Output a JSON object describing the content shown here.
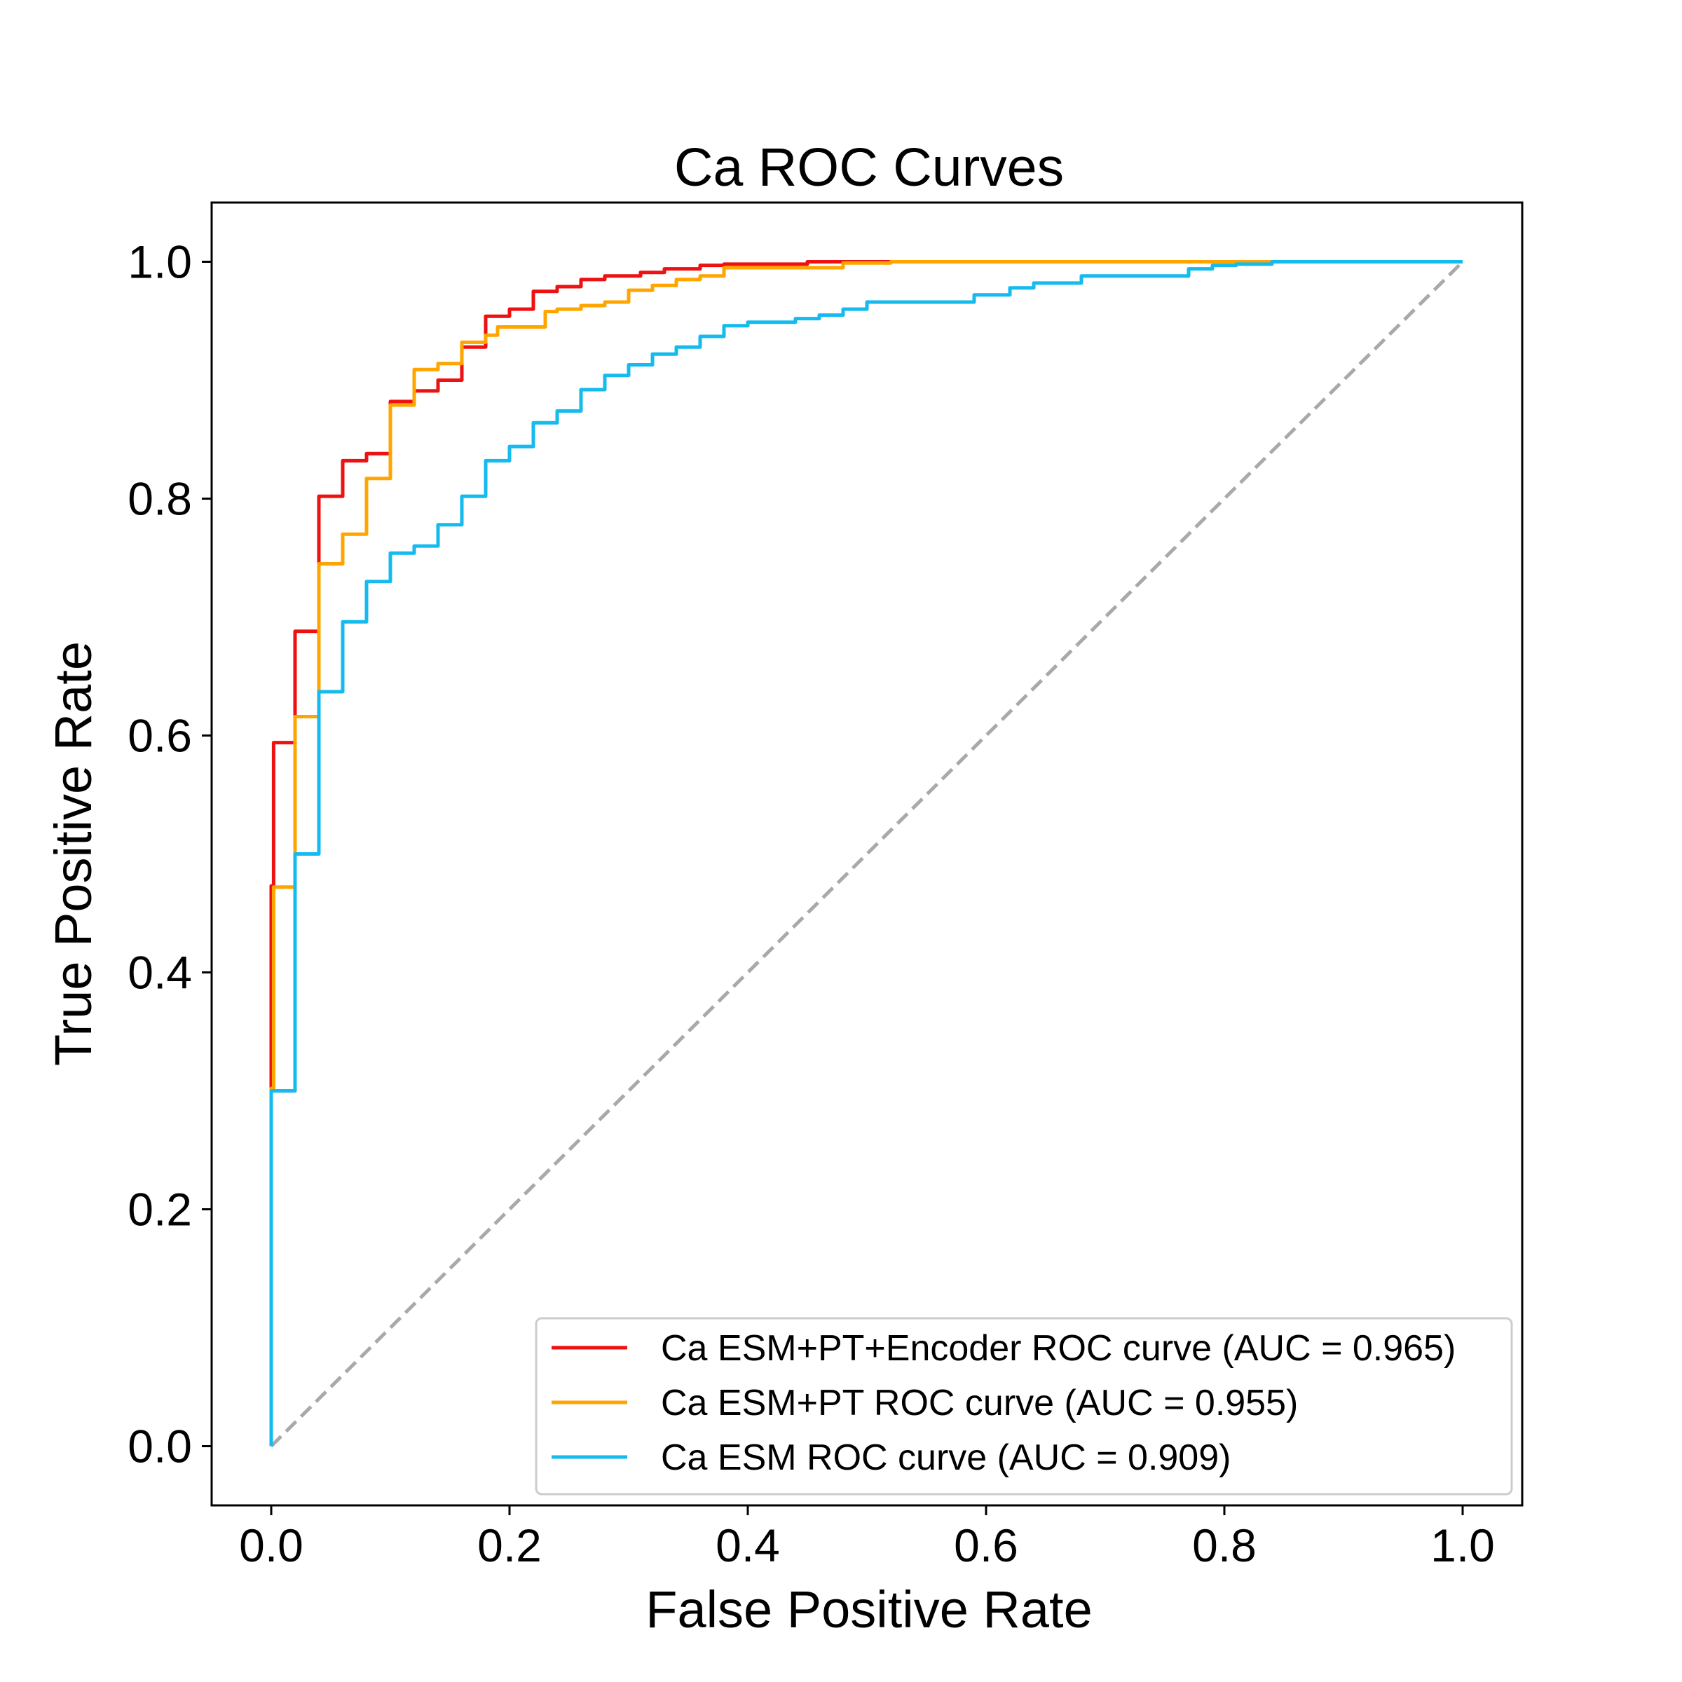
{
  "chart_data": {
    "type": "line",
    "title": "Ca ROC Curves",
    "xlabel": "False Positive Rate",
    "ylabel": "True Positive Rate",
    "xlim": [
      -0.05,
      1.05
    ],
    "ylim": [
      -0.05,
      1.05
    ],
    "xticks": [
      "0.0",
      "0.2",
      "0.4",
      "0.6",
      "0.8",
      "1.0"
    ],
    "yticks": [
      "0.0",
      "0.2",
      "0.4",
      "0.6",
      "0.8",
      "1.0"
    ],
    "grid": false,
    "legend_position": "lower-right",
    "diagonal": {
      "x": [
        0,
        1
      ],
      "y": [
        0,
        1
      ],
      "color": "#a9a9a9",
      "style": "dashed"
    },
    "series": [
      {
        "name": "Ca ESM+PT+Encoder ROC curve (AUC = 0.965)",
        "color": "#ee1111",
        "x": [
          0,
          0,
          0.002,
          0.002,
          0.011,
          0.011,
          0.02,
          0.02,
          0.03,
          0.03,
          0.04,
          0.04,
          0.05,
          0.05,
          0.06,
          0.06,
          0.07,
          0.07,
          0.08,
          0.08,
          0.09,
          0.09,
          0.1,
          0.1,
          0.11,
          0.11,
          0.12,
          0.12,
          0.13,
          0.13,
          0.14,
          0.14,
          0.15,
          0.15,
          0.16,
          0.16,
          0.17,
          0.17,
          0.18,
          0.18,
          0.19,
          0.19,
          0.2,
          0.2,
          0.21,
          0.21,
          0.22,
          0.22,
          0.23,
          0.23,
          0.24,
          0.24,
          0.26,
          0.26,
          0.28,
          0.28,
          0.31,
          0.31,
          0.33,
          0.33,
          0.36,
          0.36,
          0.38,
          0.38,
          0.45,
          0.45,
          0.53,
          0.53,
          1.0
        ],
        "y": [
          0,
          0.473,
          0.473,
          0.594,
          0.594,
          0.594,
          0.594,
          0.688,
          0.688,
          0.688,
          0.688,
          0.802,
          0.802,
          0.802,
          0.802,
          0.832,
          0.832,
          0.832,
          0.832,
          0.838,
          0.838,
          0.838,
          0.838,
          0.882,
          0.882,
          0.882,
          0.882,
          0.891,
          0.891,
          0.891,
          0.891,
          0.9,
          0.9,
          0.9,
          0.9,
          0.928,
          0.928,
          0.928,
          0.928,
          0.954,
          0.954,
          0.954,
          0.954,
          0.96,
          0.96,
          0.96,
          0.96,
          0.975,
          0.975,
          0.975,
          0.975,
          0.979,
          0.979,
          0.985,
          0.985,
          0.988,
          0.988,
          0.991,
          0.991,
          0.994,
          0.994,
          0.997,
          0.997,
          0.998,
          0.998,
          1.0,
          1.0,
          1.0,
          1.0
        ]
      },
      {
        "name": "Ca ESM+PT ROC curve (AUC = 0.955)",
        "color": "#ffa500",
        "x": [
          0,
          0,
          0.002,
          0.002,
          0.011,
          0.011,
          0.02,
          0.02,
          0.03,
          0.03,
          0.04,
          0.04,
          0.05,
          0.05,
          0.06,
          0.06,
          0.07,
          0.07,
          0.08,
          0.08,
          0.09,
          0.09,
          0.1,
          0.1,
          0.11,
          0.11,
          0.12,
          0.12,
          0.13,
          0.13,
          0.14,
          0.14,
          0.16,
          0.16,
          0.17,
          0.17,
          0.18,
          0.18,
          0.19,
          0.19,
          0.2,
          0.2,
          0.23,
          0.23,
          0.24,
          0.24,
          0.26,
          0.26,
          0.28,
          0.28,
          0.3,
          0.3,
          0.32,
          0.32,
          0.34,
          0.34,
          0.36,
          0.36,
          0.38,
          0.38,
          0.4,
          0.4,
          0.48,
          0.48,
          0.52,
          0.52,
          0.84,
          0.84,
          1.0
        ],
        "y": [
          0,
          0.302,
          0.302,
          0.472,
          0.472,
          0.472,
          0.472,
          0.616,
          0.616,
          0.616,
          0.616,
          0.745,
          0.745,
          0.745,
          0.745,
          0.77,
          0.77,
          0.77,
          0.77,
          0.817,
          0.817,
          0.817,
          0.817,
          0.879,
          0.879,
          0.879,
          0.879,
          0.909,
          0.909,
          0.909,
          0.909,
          0.914,
          0.914,
          0.932,
          0.932,
          0.932,
          0.932,
          0.938,
          0.938,
          0.945,
          0.945,
          0.945,
          0.945,
          0.958,
          0.958,
          0.96,
          0.96,
          0.963,
          0.963,
          0.966,
          0.966,
          0.976,
          0.976,
          0.98,
          0.98,
          0.985,
          0.985,
          0.988,
          0.988,
          0.995,
          0.995,
          0.995,
          0.995,
          0.999,
          0.999,
          1.0,
          1.0,
          1.0,
          1.0
        ]
      },
      {
        "name": "Ca ESM ROC curve (AUC = 0.909)",
        "color": "#15bbee",
        "x": [
          0,
          0,
          0.002,
          0.002,
          0.011,
          0.011,
          0.02,
          0.02,
          0.03,
          0.03,
          0.04,
          0.04,
          0.05,
          0.05,
          0.06,
          0.06,
          0.07,
          0.07,
          0.08,
          0.08,
          0.09,
          0.09,
          0.1,
          0.1,
          0.11,
          0.11,
          0.12,
          0.12,
          0.13,
          0.13,
          0.14,
          0.14,
          0.15,
          0.15,
          0.16,
          0.16,
          0.17,
          0.17,
          0.18,
          0.18,
          0.19,
          0.19,
          0.2,
          0.2,
          0.21,
          0.21,
          0.22,
          0.22,
          0.23,
          0.23,
          0.24,
          0.24,
          0.25,
          0.25,
          0.26,
          0.26,
          0.27,
          0.27,
          0.28,
          0.28,
          0.29,
          0.29,
          0.3,
          0.3,
          0.31,
          0.31,
          0.32,
          0.32,
          0.33,
          0.33,
          0.34,
          0.34,
          0.35,
          0.35,
          0.36,
          0.36,
          0.37,
          0.37,
          0.38,
          0.38,
          0.39,
          0.39,
          0.4,
          0.4,
          0.42,
          0.42,
          0.44,
          0.44,
          0.46,
          0.46,
          0.48,
          0.48,
          0.5,
          0.5,
          0.54,
          0.54,
          0.58,
          0.58,
          0.59,
          0.59,
          0.62,
          0.62,
          0.64,
          0.64,
          0.66,
          0.66,
          0.68,
          0.68,
          0.7,
          0.7,
          0.74,
          0.74,
          0.77,
          0.77,
          0.79,
          0.79,
          0.81,
          0.81,
          0.84,
          0.84,
          1.0
        ],
        "y": [
          0,
          0.3,
          0.3,
          0.3,
          0.3,
          0.3,
          0.3,
          0.5,
          0.5,
          0.5,
          0.5,
          0.637,
          0.637,
          0.637,
          0.637,
          0.696,
          0.696,
          0.696,
          0.696,
          0.73,
          0.73,
          0.73,
          0.73,
          0.754,
          0.754,
          0.754,
          0.754,
          0.76,
          0.76,
          0.76,
          0.76,
          0.778,
          0.778,
          0.778,
          0.778,
          0.802,
          0.802,
          0.802,
          0.802,
          0.832,
          0.832,
          0.832,
          0.832,
          0.844,
          0.844,
          0.844,
          0.844,
          0.864,
          0.864,
          0.864,
          0.864,
          0.874,
          0.874,
          0.874,
          0.874,
          0.892,
          0.892,
          0.892,
          0.892,
          0.904,
          0.904,
          0.904,
          0.904,
          0.913,
          0.913,
          0.913,
          0.913,
          0.922,
          0.922,
          0.922,
          0.922,
          0.928,
          0.928,
          0.928,
          0.928,
          0.937,
          0.937,
          0.937,
          0.937,
          0.946,
          0.946,
          0.946,
          0.946,
          0.949,
          0.949,
          0.949,
          0.949,
          0.952,
          0.952,
          0.955,
          0.955,
          0.96,
          0.96,
          0.966,
          0.966,
          0.966,
          0.966,
          0.966,
          0.966,
          0.972,
          0.972,
          0.978,
          0.978,
          0.982,
          0.982,
          0.982,
          0.982,
          0.988,
          0.988,
          0.988,
          0.988,
          0.988,
          0.988,
          0.994,
          0.994,
          0.997,
          0.997,
          0.998,
          0.998,
          1.0,
          1.0
        ]
      }
    ]
  }
}
